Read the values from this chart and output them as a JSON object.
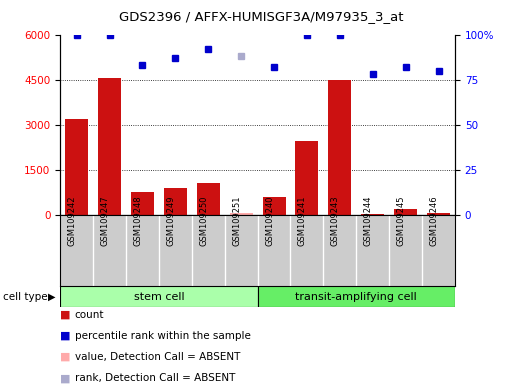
{
  "title": "GDS2396 / AFFX-HUMISGF3A/M97935_3_at",
  "samples": [
    "GSM109242",
    "GSM109247",
    "GSM109248",
    "GSM109249",
    "GSM109250",
    "GSM109251",
    "GSM109240",
    "GSM109241",
    "GSM109243",
    "GSM109244",
    "GSM109245",
    "GSM109246"
  ],
  "counts": [
    3200,
    4550,
    750,
    900,
    1050,
    75,
    600,
    2450,
    4500,
    30,
    200,
    80
  ],
  "percentiles": [
    100,
    100,
    83,
    87,
    92,
    88,
    82,
    100,
    100,
    78,
    82,
    80
  ],
  "absent_value_idx": [
    5
  ],
  "absent_rank_idx": [
    5
  ],
  "bar_color": "#cc1111",
  "absent_bar_color": "#ffaaaa",
  "dot_color": "#0000cc",
  "absent_dot_color": "#aaaacc",
  "left_yticks": [
    0,
    1500,
    3000,
    4500,
    6000
  ],
  "right_yticks": [
    0,
    25,
    50,
    75,
    100
  ],
  "ylim_left": [
    0,
    6000
  ],
  "ylim_right": [
    0,
    100
  ],
  "stem_cell_color": "#aaffaa",
  "transit_cell_color": "#66ee66",
  "sample_box_color": "#cccccc",
  "legend": [
    {
      "color": "#cc1111",
      "label": "count"
    },
    {
      "color": "#0000cc",
      "label": "percentile rank within the sample"
    },
    {
      "color": "#ffaaaa",
      "label": "value, Detection Call = ABSENT"
    },
    {
      "color": "#aaaacc",
      "label": "rank, Detection Call = ABSENT"
    }
  ]
}
